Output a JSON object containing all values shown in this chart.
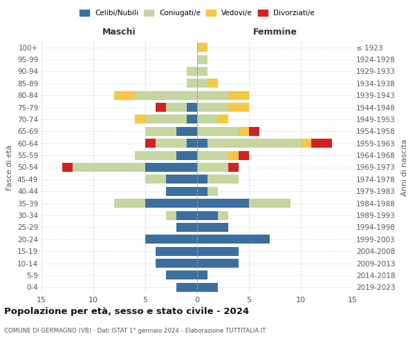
{
  "age_groups": [
    "100+",
    "95-99",
    "90-94",
    "85-89",
    "80-84",
    "75-79",
    "70-74",
    "65-69",
    "60-64",
    "55-59",
    "50-54",
    "45-49",
    "40-44",
    "35-39",
    "30-34",
    "25-29",
    "20-24",
    "15-19",
    "10-14",
    "5-9",
    "0-4"
  ],
  "birth_years": [
    "≤ 1923",
    "1924-1928",
    "1929-1933",
    "1934-1938",
    "1939-1943",
    "1944-1948",
    "1949-1953",
    "1954-1958",
    "1959-1963",
    "1964-1968",
    "1969-1973",
    "1974-1978",
    "1979-1983",
    "1984-1988",
    "1989-1993",
    "1994-1998",
    "1999-2003",
    "2004-2008",
    "2009-2013",
    "2014-2018",
    "2019-2023"
  ],
  "male": {
    "celibi": [
      0,
      0,
      0,
      0,
      0,
      1,
      1,
      2,
      1,
      2,
      5,
      3,
      3,
      5,
      2,
      2,
      5,
      4,
      4,
      3,
      2
    ],
    "coniugati": [
      0,
      0,
      1,
      1,
      6,
      2,
      4,
      3,
      3,
      4,
      7,
      2,
      0,
      3,
      1,
      0,
      0,
      0,
      0,
      0,
      0
    ],
    "vedovi": [
      0,
      0,
      0,
      0,
      2,
      0,
      1,
      0,
      0,
      0,
      0,
      0,
      0,
      0,
      0,
      0,
      0,
      0,
      0,
      0,
      0
    ],
    "divorziati": [
      0,
      0,
      0,
      0,
      0,
      1,
      0,
      0,
      1,
      0,
      1,
      0,
      0,
      0,
      0,
      0,
      0,
      0,
      0,
      0,
      0
    ]
  },
  "female": {
    "nubili": [
      0,
      0,
      0,
      0,
      0,
      0,
      0,
      0,
      1,
      0,
      0,
      1,
      1,
      5,
      2,
      3,
      7,
      4,
      4,
      1,
      2
    ],
    "coniugate": [
      0,
      1,
      1,
      1,
      3,
      3,
      2,
      4,
      9,
      3,
      3,
      3,
      1,
      4,
      1,
      0,
      0,
      0,
      0,
      0,
      0
    ],
    "vedove": [
      1,
      0,
      0,
      1,
      2,
      2,
      1,
      1,
      1,
      1,
      0,
      0,
      0,
      0,
      0,
      0,
      0,
      0,
      0,
      0,
      0
    ],
    "divorziate": [
      0,
      0,
      0,
      0,
      0,
      0,
      0,
      1,
      2,
      1,
      1,
      0,
      0,
      0,
      0,
      0,
      0,
      0,
      0,
      0,
      0
    ]
  },
  "color_celibi": "#3c6fa0",
  "color_coniugati": "#c5d6a0",
  "color_vedovi": "#f5c842",
  "color_divorziati": "#d32020",
  "xlim": 15,
  "title": "Popolazione per età, sesso e stato civile - 2024",
  "subtitle": "COMUNE DI GERMAGNO (VB) - Dati ISTAT 1° gennaio 2024 - Elaborazione TUTTITALIA.IT",
  "ylabel": "Fasce di età",
  "ylabel_right": "Anni di nascita",
  "xlabel_left": "Maschi",
  "xlabel_right": "Femmine",
  "bg_color": "#ffffff",
  "grid_color": "#cccccc"
}
